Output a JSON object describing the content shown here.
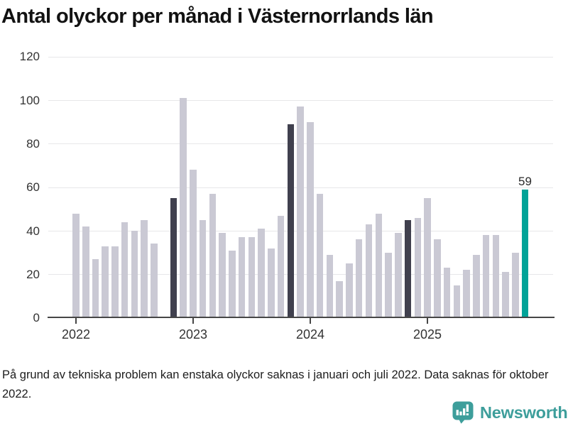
{
  "title": "Antal olyckor per månad i Västernorrlands län",
  "chart_data": {
    "type": "bar",
    "title": "Antal olyckor per månad i Västernorrlands län",
    "xlabel": "",
    "ylabel": "",
    "ylim": [
      0,
      120
    ],
    "yticks": [
      0,
      20,
      40,
      60,
      80,
      100,
      120
    ],
    "year_ticks": [
      "2022",
      "2023",
      "2024",
      "2025"
    ],
    "grid": "horizontal",
    "legend": "none",
    "series": [
      {
        "year": "2022",
        "values": [
          48,
          42,
          27,
          33,
          33,
          44,
          40,
          45,
          34,
          null,
          55,
          101
        ]
      },
      {
        "year": "2023",
        "values": [
          68,
          45,
          57,
          39,
          31,
          37,
          37,
          41,
          32,
          47,
          89,
          97
        ]
      },
      {
        "year": "2024",
        "values": [
          90,
          57,
          29,
          17,
          25,
          36,
          43,
          48,
          30,
          39,
          45,
          46
        ]
      },
      {
        "year": "2025",
        "values": [
          55,
          36,
          23,
          15,
          22,
          29,
          38,
          38,
          21,
          30,
          59
        ]
      }
    ],
    "highlight": {
      "dark_bars": [
        "2022-11",
        "2023-11",
        "2024-11"
      ],
      "accent_bar": "2025-11",
      "accent_label": "59"
    },
    "missing_data": [
      "2022-10"
    ]
  },
  "colors": {
    "bar_default": "#cac9d4",
    "bar_dark": "#40404e",
    "bar_accent": "#00a398",
    "axis": "#464646",
    "gridline": "#e7e7e9",
    "tick_label": "#333333",
    "title": "#121212",
    "footer_text": "#1d1d1d",
    "logo_teal": "#3d9e9b"
  },
  "footer": {
    "note": "På grund av tekniska problem kan enstaka olyckor saknas i januari och juli 2022. Data saknas för oktober 2022."
  },
  "branding": {
    "name": "Newsworthy",
    "icon": "newsworthy-speech-bubble-barchart-icon"
  }
}
